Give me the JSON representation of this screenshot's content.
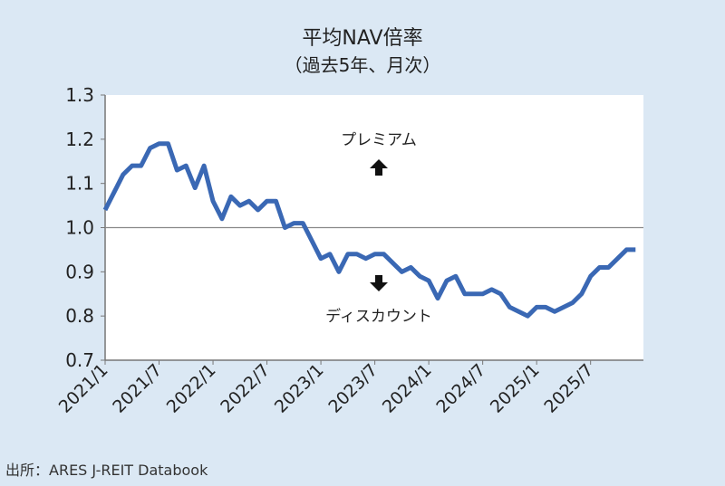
{
  "chart_data": {
    "type": "line",
    "title": "平均NAV倍率",
    "subtitle": "（過去5年、月次）",
    "xlabel": "",
    "ylabel": "",
    "ylim": [
      0.7,
      1.3
    ],
    "yticks": [
      "1.3",
      "1.2",
      "1.1",
      "1.0",
      "0.9",
      "0.8",
      "0.7"
    ],
    "xtick_labels": [
      "2021/1",
      "2021/7",
      "2022/1",
      "2022/7",
      "2023/1",
      "2023/7",
      "2024/1",
      "2024/7",
      "2025/1",
      "2025/7"
    ],
    "reference_line": 1.0,
    "annotations": {
      "premium": "プレミアム",
      "discount": "ディスカウント"
    },
    "series": [
      {
        "name": "平均NAV倍率",
        "color": "#3a68b4",
        "start": "2021/1",
        "values": [
          1.04,
          1.08,
          1.12,
          1.14,
          1.14,
          1.18,
          1.19,
          1.19,
          1.13,
          1.14,
          1.09,
          1.14,
          1.06,
          1.02,
          1.07,
          1.05,
          1.06,
          1.04,
          1.06,
          1.06,
          1.0,
          1.01,
          1.01,
          0.97,
          0.93,
          0.94,
          0.9,
          0.94,
          0.94,
          0.93,
          0.94,
          0.94,
          0.92,
          0.9,
          0.91,
          0.89,
          0.88,
          0.84,
          0.88,
          0.89,
          0.85,
          0.85,
          0.85,
          0.86,
          0.85,
          0.82,
          0.81,
          0.8,
          0.82,
          0.82,
          0.81,
          0.82,
          0.83,
          0.85,
          0.89,
          0.91,
          0.91,
          0.93,
          0.95,
          0.95
        ]
      }
    ]
  },
  "source": "出所：ARES J-REIT Databook"
}
